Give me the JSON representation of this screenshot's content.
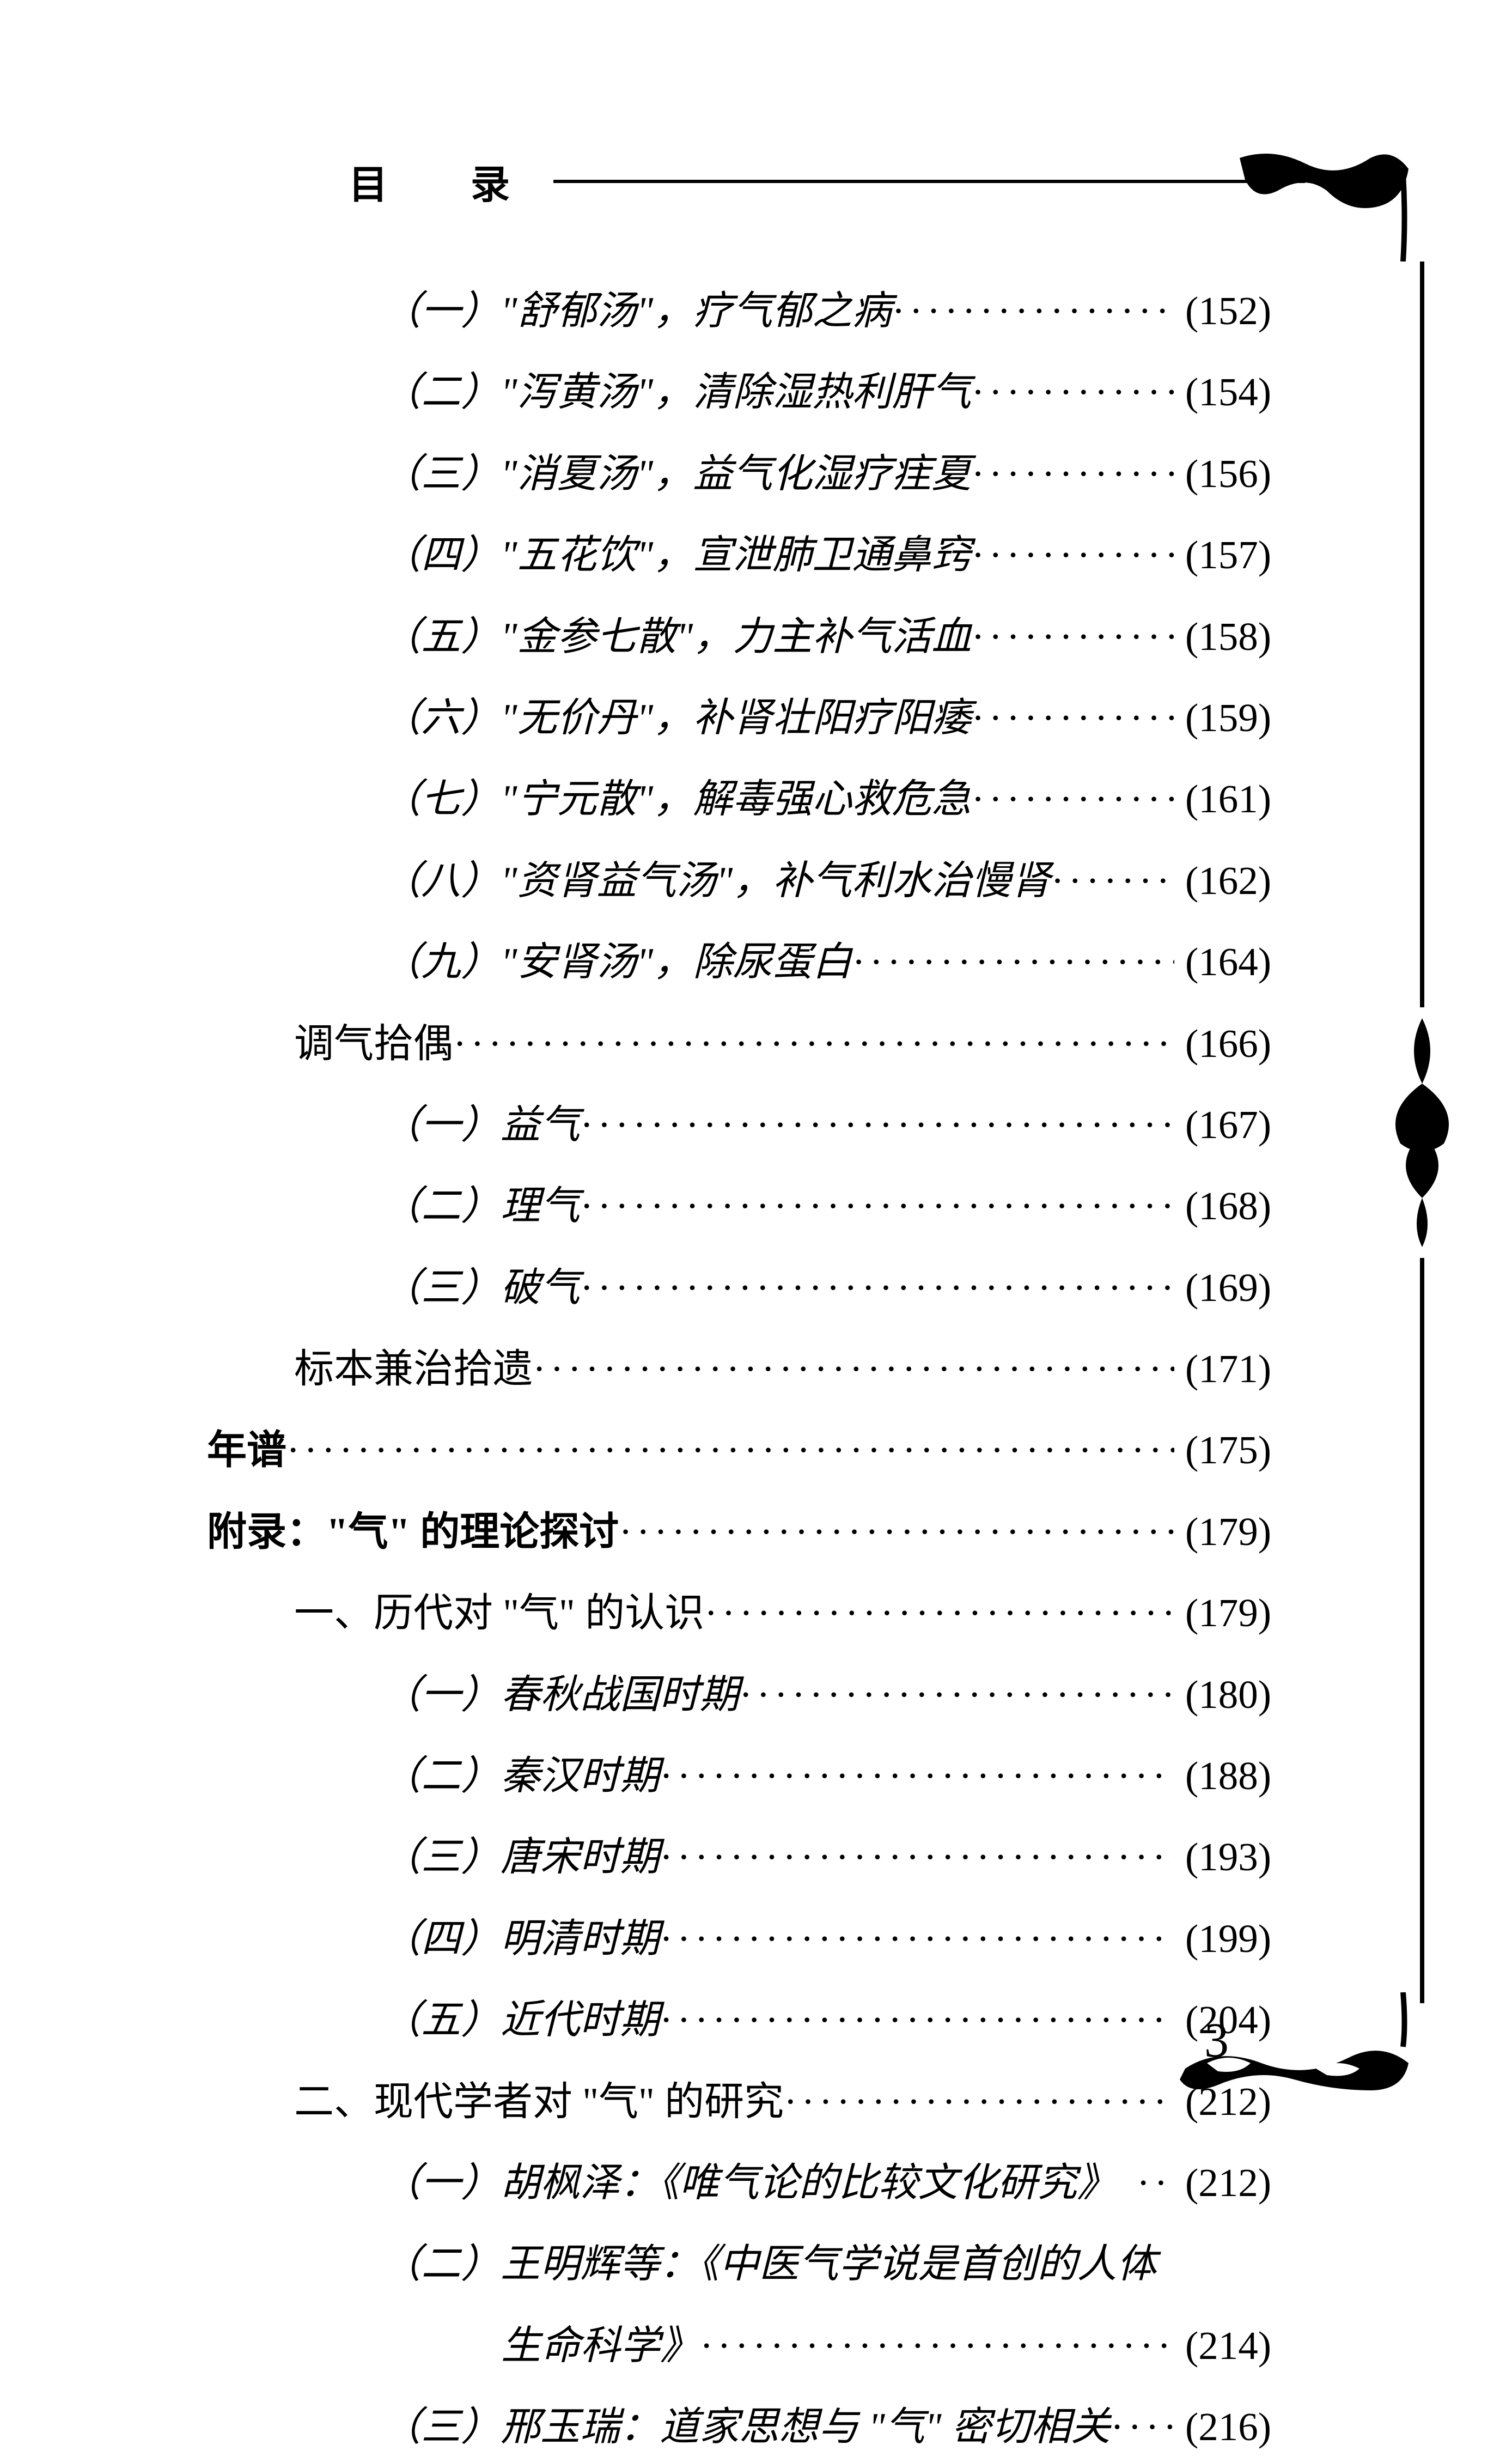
{
  "header": {
    "title": "目　录"
  },
  "pageNumber": "3",
  "entries": [
    {
      "indent": 2,
      "label": "（一）\"舒郁汤\"，疗气郁之病",
      "page": "(152)",
      "italic": true
    },
    {
      "indent": 2,
      "label": "（二）\"泻黄汤\"，清除湿热利肝气",
      "page": "(154)",
      "italic": true
    },
    {
      "indent": 2,
      "label": "（三）\"消夏汤\"，益气化湿疗疰夏",
      "page": "(156)",
      "italic": true
    },
    {
      "indent": 2,
      "label": "（四）\"五花饮\"，宣泄肺卫通鼻窍",
      "page": "(157)",
      "italic": true
    },
    {
      "indent": 2,
      "label": "（五）\"金参七散\"，力主补气活血",
      "page": "(158)",
      "italic": true
    },
    {
      "indent": 2,
      "label": "（六）\"无价丹\"，补肾壮阳疗阳痿",
      "page": "(159)",
      "italic": true
    },
    {
      "indent": 2,
      "label": "（七）\"宁元散\"，解毒强心救危急",
      "page": "(161)",
      "italic": true
    },
    {
      "indent": 2,
      "label": "（八）\"资肾益气汤\"，补气利水治慢肾",
      "page": "(162)",
      "italic": true
    },
    {
      "indent": 2,
      "label": "（九）\"安肾汤\"，除尿蛋白",
      "page": "(164)",
      "italic": true
    },
    {
      "indent": 1,
      "label": "调气拾偶",
      "page": "(166)",
      "italic": false
    },
    {
      "indent": 2,
      "label": "（一）益气",
      "page": "(167)",
      "italic": true
    },
    {
      "indent": 2,
      "label": "（二）理气",
      "page": "(168)",
      "italic": true
    },
    {
      "indent": 2,
      "label": "（三）破气",
      "page": "(169)",
      "italic": true
    },
    {
      "indent": 1,
      "label": "标本兼治拾遗",
      "page": "(171)",
      "italic": false
    },
    {
      "indent": 0,
      "label": "年谱",
      "page": "(175)",
      "italic": false,
      "bold": true
    },
    {
      "indent": 0,
      "label": "附录：\"气\" 的理论探讨 ",
      "page": "(179)",
      "italic": false,
      "bold": true
    },
    {
      "indent": 1,
      "label": "一、历代对 \"气\" 的认识",
      "page": "(179)",
      "italic": false
    },
    {
      "indent": 2,
      "label": "（一）春秋战国时期",
      "page": "(180)",
      "italic": true
    },
    {
      "indent": 2,
      "label": "（二）秦汉时期",
      "page": "(188)",
      "italic": true
    },
    {
      "indent": 2,
      "label": "（三）唐宋时期",
      "page": "(193)",
      "italic": true
    },
    {
      "indent": 2,
      "label": "（四）明清时期",
      "page": "(199)",
      "italic": true
    },
    {
      "indent": 2,
      "label": "（五）近代时期",
      "page": "(204)",
      "italic": true
    },
    {
      "indent": 1,
      "label": "二、现代学者对 \"气\" 的研究",
      "page": "(212)",
      "italic": false
    },
    {
      "indent": 2,
      "label": "（一）胡枫泽：《唯气论的比较文化研究》　",
      "page": "(212)",
      "italic": true
    },
    {
      "indent": 2,
      "label": "（二）王明辉等：《中医气学说是首创的人体",
      "page": "",
      "italic": true,
      "nopagenum": true
    },
    {
      "indent": 3,
      "label": "生命科学》",
      "page": "(214)",
      "italic": true
    },
    {
      "indent": 2,
      "label": "（三）邢玉瑞：道家思想与 \"气\" 密切相关",
      "page": "(216)",
      "italic": true
    }
  ]
}
